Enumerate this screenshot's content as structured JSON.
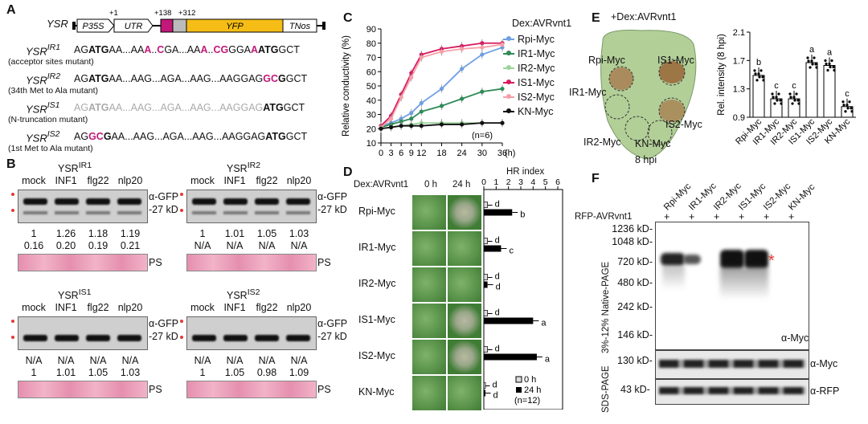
{
  "panelA": {
    "label": "A",
    "construct": {
      "name": "YSR",
      "promoter": "P35S",
      "utr": "UTR",
      "yfp": "YFP",
      "term": "TNos",
      "pos1": "+1",
      "pos2": "+138",
      "pos3": "+312"
    },
    "seqs": [
      {
        "name": "YSR",
        "sup": "IR1",
        "desc": "(acceptor sites mutant)"
      },
      {
        "name": "YSR",
        "sup": "IR2",
        "desc": "(34th Met to Ala mutant)"
      },
      {
        "name": "YSR",
        "sup": "IS1",
        "desc": "(N-truncation mutant)"
      },
      {
        "name": "YSR",
        "sup": "IS2",
        "desc": "(1st Met to Ala mutant)"
      }
    ]
  },
  "panelB": {
    "label": "B",
    "lanes": [
      "mock",
      "INF1",
      "flg22",
      "nlp20"
    ],
    "agfp": "α-GFP",
    "kd": "-27 kD",
    "ps": "PS",
    "blots": [
      {
        "title": "YSR",
        "sup": "IR1",
        "row1": [
          "1",
          "1.26",
          "1.18",
          "1.19"
        ],
        "row2": [
          "0.16",
          "0.20",
          "0.19",
          "0.21"
        ]
      },
      {
        "title": "YSR",
        "sup": "IR2",
        "row1": [
          "1",
          "1.01",
          "1.05",
          "1.03"
        ],
        "row2": [
          "N/A",
          "N/A",
          "N/A",
          "N/A"
        ]
      },
      {
        "title": "YSR",
        "sup": "IS1",
        "row1": [
          "N/A",
          "N/A",
          "N/A",
          "N/A"
        ],
        "row2": [
          "1",
          "1.01",
          "1.05",
          "1.03"
        ]
      },
      {
        "title": "YSR",
        "sup": "IS2",
        "row1": [
          "N/A",
          "N/A",
          "N/A",
          "N/A"
        ],
        "row2": [
          "1",
          "1.05",
          "0.98",
          "1.09"
        ]
      }
    ]
  },
  "panelC": {
    "label": "C",
    "legend_title": "Dex:AVRvnt1",
    "n_label": "(n=6)",
    "unit": "(h)",
    "colors": [
      "#6f9fe3",
      "#2e8b57",
      "#9cd49c",
      "#d81b60",
      "#f4a0a8",
      "#111111"
    ],
    "chart_data": {
      "type": "line",
      "x": [
        0,
        3,
        6,
        9,
        12,
        18,
        24,
        30,
        36
      ],
      "xlabel": "",
      "ylabel": "Relative conductivity (%)",
      "ylim": [
        10,
        90
      ],
      "yticks": [
        10,
        20,
        30,
        40,
        50,
        60,
        70,
        80,
        90
      ],
      "series": [
        {
          "name": "Rpi-Myc",
          "values": [
            22,
            24,
            27,
            31,
            38,
            48,
            62,
            72,
            77
          ]
        },
        {
          "name": "IR1-Myc",
          "values": [
            21,
            23,
            25,
            27,
            32,
            36,
            41,
            46,
            48
          ]
        },
        {
          "name": "IR2-Myc",
          "values": [
            20,
            21,
            22,
            23,
            24,
            24,
            24,
            24,
            24
          ]
        },
        {
          "name": "IS1-Myc",
          "values": [
            22,
            29,
            44,
            59,
            72,
            76,
            78,
            80,
            80
          ]
        },
        {
          "name": "IS2-Myc",
          "values": [
            21,
            27,
            42,
            56,
            70,
            74,
            76,
            77,
            79
          ]
        },
        {
          "name": "KN-Myc",
          "values": [
            20,
            21,
            22,
            22,
            22,
            23,
            23,
            24,
            24
          ]
        }
      ]
    }
  },
  "panelD": {
    "label": "D",
    "dex": "Dex:AVRvnt1",
    "t0": "0 h",
    "t24": "24 h",
    "hr_title": "HR index",
    "n_label": "(n=12)",
    "legend0": "0 h",
    "legend24": "24 h",
    "chart_data": {
      "type": "bar",
      "categories": [
        "Rpi-Myc",
        "IR1-Myc",
        "IR2-Myc",
        "IS1-Myc",
        "IS2-Myc",
        "KN-Myc"
      ],
      "xlim": [
        0,
        6
      ],
      "xticks": [
        0,
        1,
        2,
        3,
        4,
        5,
        6
      ],
      "series": [
        {
          "name": "0 h",
          "values": [
            0.3,
            0.3,
            0.3,
            0.3,
            0.3,
            0.1
          ]
        },
        {
          "name": "24 h",
          "values": [
            2.3,
            1.4,
            0.3,
            4.0,
            4.3,
            0.1
          ]
        }
      ],
      "letters0": [
        "d",
        "d",
        "d",
        "d",
        "d",
        "d"
      ],
      "letters24": [
        "b",
        "c",
        "d",
        "a",
        "a",
        "d"
      ]
    }
  },
  "panelE": {
    "label": "E",
    "leaf_title": "+Dex:AVRvnt1",
    "time": "8 hpi",
    "spots": [
      "Rpi-Myc",
      "IS1-Myc",
      "IR1-Myc",
      "IS2-Myc",
      "IR2-Myc",
      "KN-Myc"
    ],
    "chart_data": {
      "type": "bar",
      "categories": [
        "Rpi-Myc",
        "IR1-Myc",
        "IR2-Myc",
        "IS1-Myc",
        "IS2-Myc",
        "KN-Myc"
      ],
      "values": [
        1.49,
        1.16,
        1.16,
        1.67,
        1.63,
        1.05
      ],
      "letters": [
        "b",
        "c",
        "c",
        "a",
        "a",
        "c"
      ],
      "ylabel": "Rel. intensity (8 hpi)",
      "ylim": [
        0.9,
        2.1
      ],
      "yticks": [
        "0.9",
        "1.3",
        "1.7",
        "2.1"
      ]
    }
  },
  "panelF": {
    "label": "F",
    "lanes": [
      "Rpi-Myc",
      "IR1-Myc",
      "IR2-Myc",
      "IS1-Myc",
      "IS2-Myc",
      "KN-Myc"
    ],
    "rfp_label": "RFP-AVRvnt1",
    "plus": "+",
    "markers": [
      "1236 kD-",
      "1048 kD-",
      "720 kD-",
      "480 kD-",
      "242 kD-",
      "146 kD-"
    ],
    "native": "3%-12% Native-PAGE",
    "sds": "SDS-PAGE",
    "amyc": "α-Myc",
    "arfp": "α-RFP",
    "kd130": "130 kD-",
    "kd43": "43 kD-",
    "star": "*"
  }
}
